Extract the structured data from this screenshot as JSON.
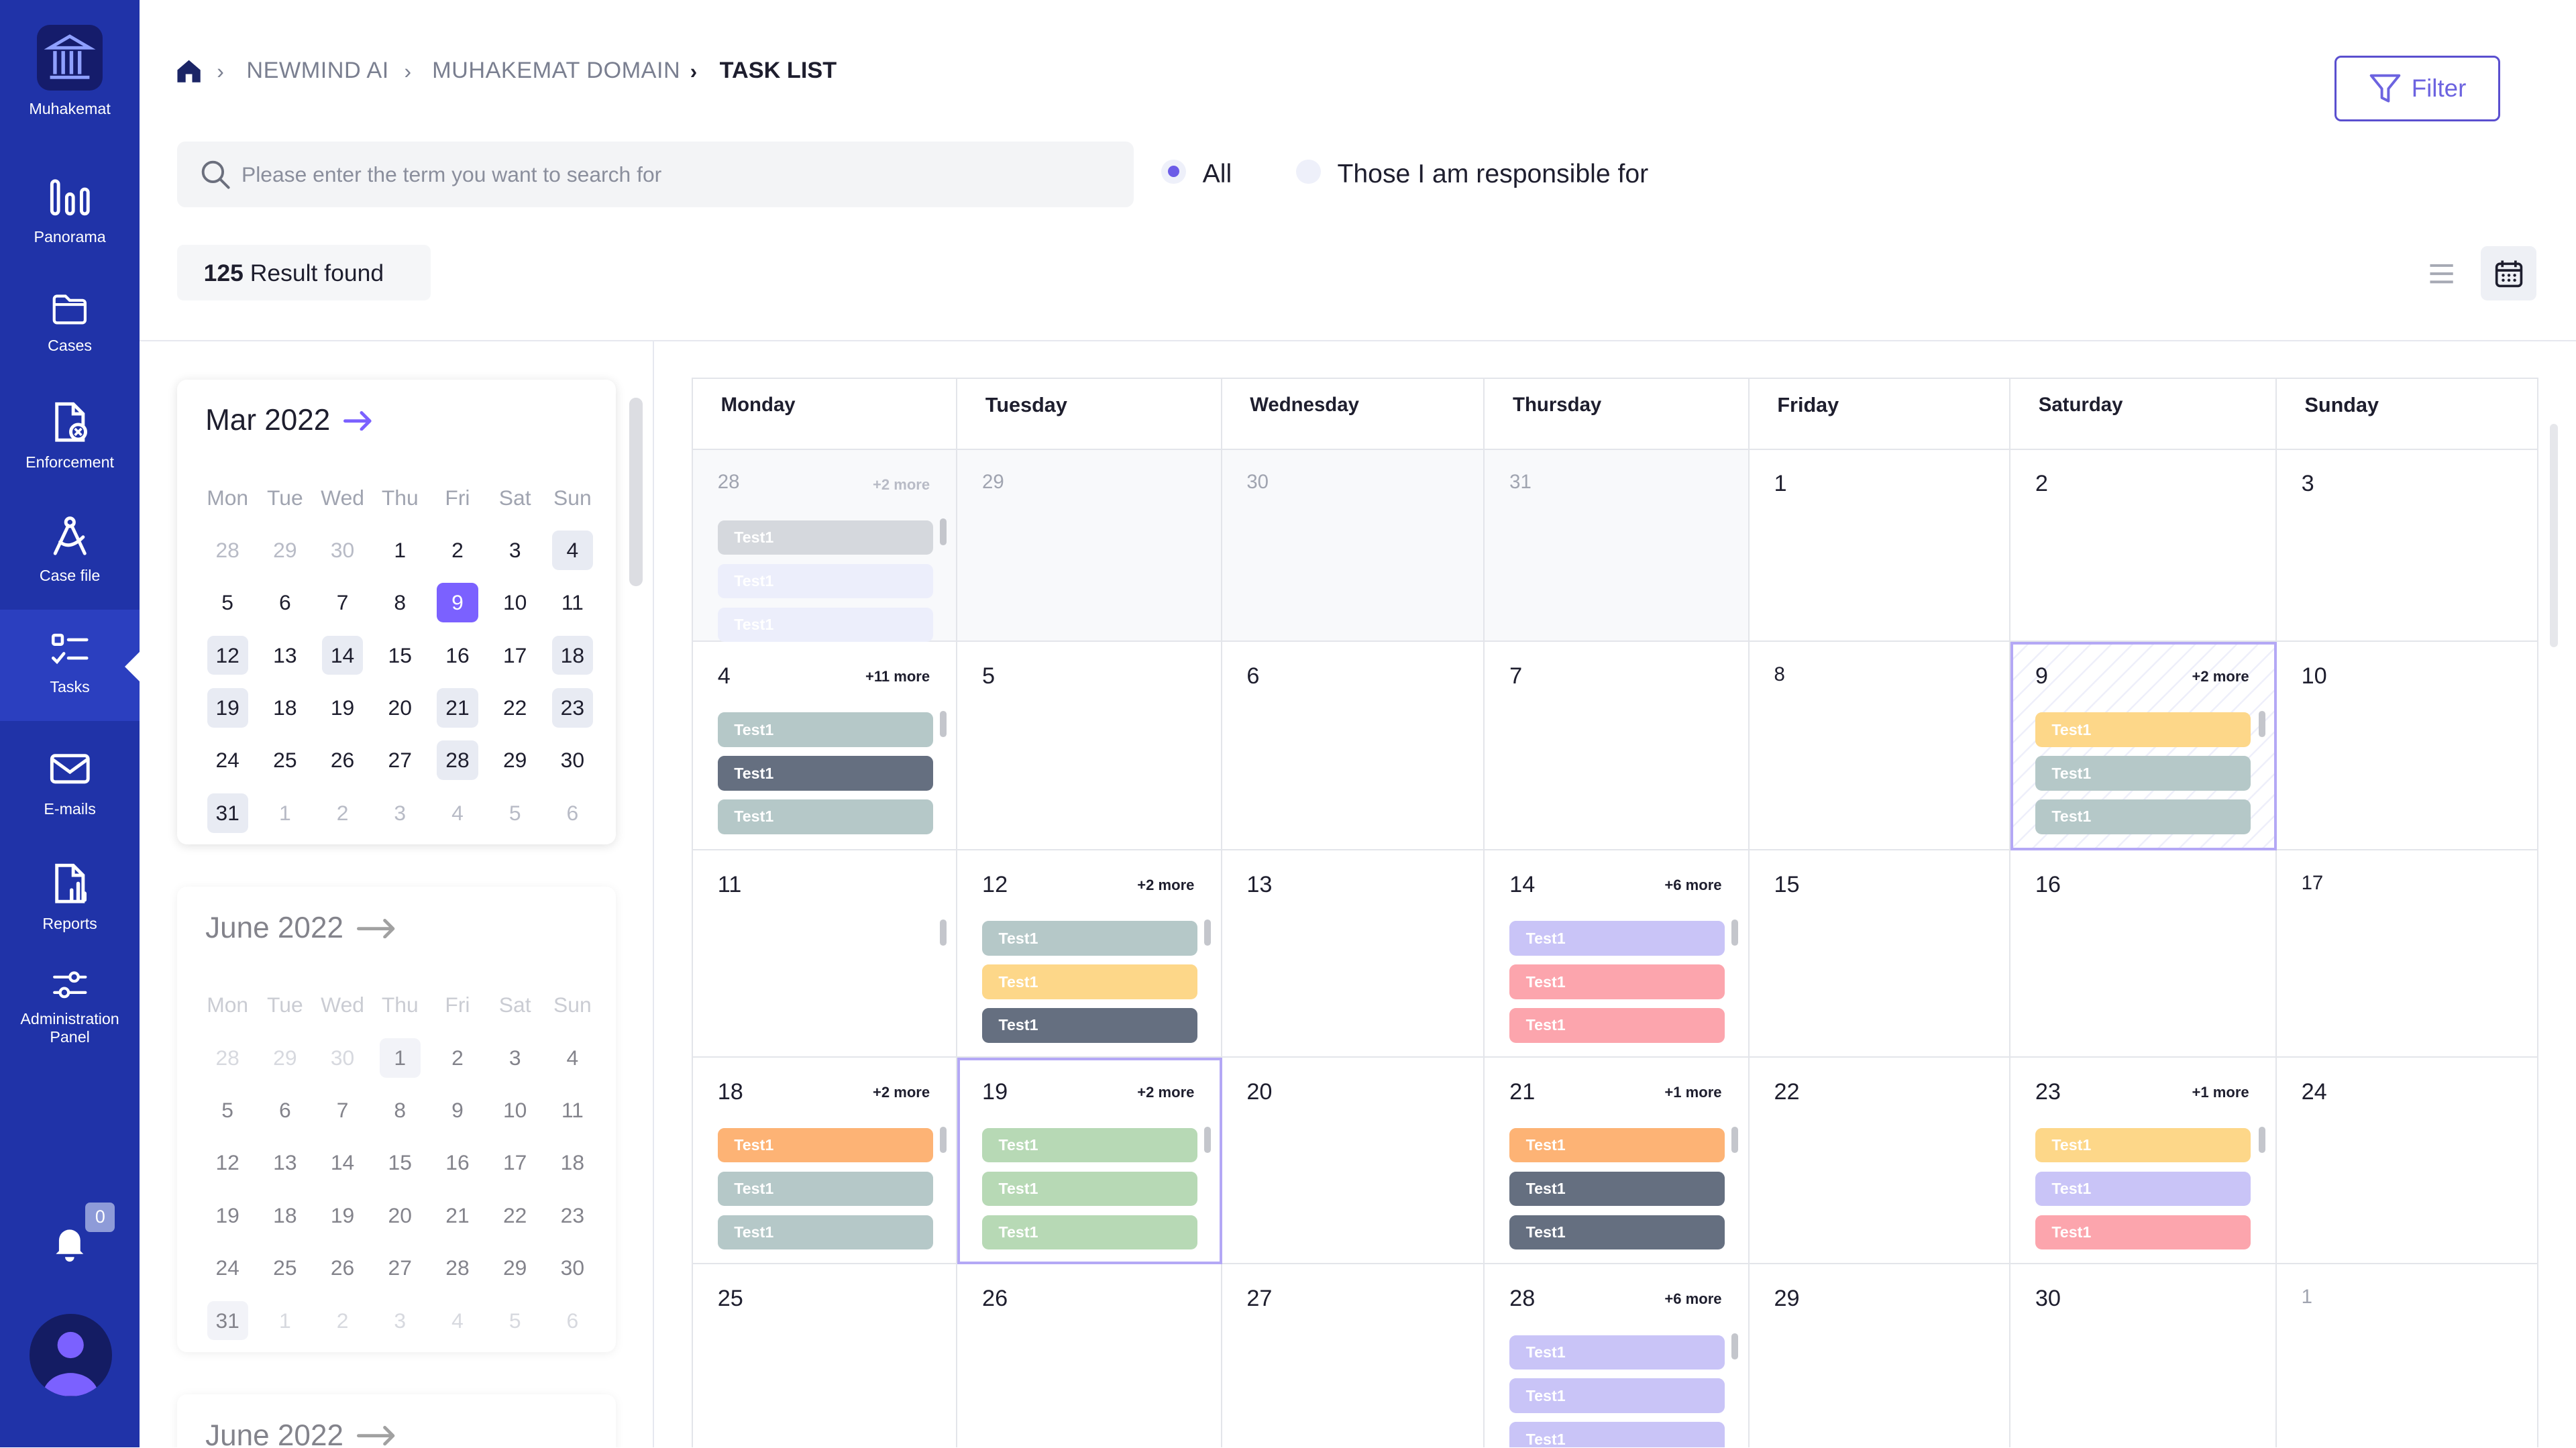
{
  "app": {
    "name": "Muhakemat"
  },
  "sidebar": {
    "items": [
      {
        "label": "Panorama",
        "icon": "bar-chart-icon"
      },
      {
        "label": "Cases",
        "icon": "folder-icon"
      },
      {
        "label": "Enforcement",
        "icon": "document-gear-icon"
      },
      {
        "label": "Case file",
        "icon": "compass-icon"
      },
      {
        "label": "Tasks",
        "icon": "checklist-icon"
      },
      {
        "label": "E-mails",
        "icon": "envelope-icon"
      },
      {
        "label": "Reports",
        "icon": "report-icon"
      },
      {
        "label": "Administration Panel",
        "icon": "sliders-icon"
      }
    ],
    "notification_count": "0"
  },
  "breadcrumb": {
    "items": [
      "NEWMIND AI",
      "MUHAKEMAT DOMAIN",
      "TASK LIST"
    ]
  },
  "search": {
    "placeholder": "Please enter the term you want to search for"
  },
  "filters": {
    "all": "All",
    "responsible": "Those I am responsible for",
    "selected": "All"
  },
  "filter_button": "Filter",
  "results": {
    "count": "125",
    "label": "Result found"
  },
  "mini_calendars": [
    {
      "title": "Mar 2022",
      "weekdays": [
        "Mon",
        "Tue",
        "Wed",
        "Thu",
        "Fri",
        "Sat",
        "Sun"
      ],
      "rows": [
        [
          "28",
          "29",
          "30",
          "1",
          "2",
          "3",
          "4"
        ],
        [
          "5",
          "6",
          "7",
          "8",
          "9",
          "10",
          "11"
        ],
        [
          "12",
          "13",
          "14",
          "15",
          "16",
          "17",
          "18"
        ],
        [
          "19",
          "18",
          "19",
          "20",
          "21",
          "22",
          "23"
        ],
        [
          "24",
          "25",
          "26",
          "27",
          "28",
          "29",
          "30"
        ],
        [
          "31",
          "1",
          "2",
          "3",
          "4",
          "5",
          "6"
        ]
      ],
      "highlighted": [
        "0-6",
        "2-0",
        "2-2",
        "2-6",
        "3-0",
        "3-4",
        "3-6",
        "4-4",
        "5-0"
      ],
      "selected": "1-4",
      "dim": [
        "0-0",
        "0-1",
        "0-2",
        "5-1",
        "5-2",
        "5-3",
        "5-4",
        "5-5",
        "5-6"
      ]
    },
    {
      "title": "June 2022",
      "weekdays": [
        "Mon",
        "Tue",
        "Wed",
        "Thu",
        "Fri",
        "Sat",
        "Sun"
      ],
      "rows": [
        [
          "28",
          "29",
          "30",
          "1",
          "2",
          "3",
          "4"
        ],
        [
          "5",
          "6",
          "7",
          "8",
          "9",
          "10",
          "11"
        ],
        [
          "12",
          "13",
          "14",
          "15",
          "16",
          "17",
          "18"
        ],
        [
          "19",
          "18",
          "19",
          "20",
          "21",
          "22",
          "23"
        ],
        [
          "24",
          "25",
          "26",
          "27",
          "28",
          "29",
          "30"
        ],
        [
          "31",
          "1",
          "2",
          "3",
          "4",
          "5",
          "6"
        ]
      ],
      "highlighted": [
        "0-3",
        "5-0"
      ],
      "selected": "",
      "dim": [
        "0-0",
        "0-1",
        "0-2",
        "5-1",
        "5-2",
        "5-3",
        "5-4",
        "5-5",
        "5-6"
      ]
    },
    {
      "title": "June 2022"
    }
  ],
  "calendar": {
    "weekdays": [
      "Monday",
      "Tuesday",
      "Wednesday",
      "Thursday",
      "Friday",
      "Saturday",
      "Sunday"
    ],
    "weeks": [
      [
        {
          "day": "28",
          "past": true,
          "more": "+2 more",
          "tasks": [
            {
              "label": "Test1",
              "color": "#d5d8dd"
            },
            {
              "label": "Test1",
              "color": "#eceefb"
            },
            {
              "label": "Test1",
              "color": "#eceefb"
            }
          ]
        },
        {
          "day": "29",
          "past": true
        },
        {
          "day": "30",
          "past": true
        },
        {
          "day": "31",
          "past": true
        },
        {
          "day": "1"
        },
        {
          "day": "2"
        },
        {
          "day": "3"
        }
      ],
      [
        {
          "day": "4",
          "more": "+11 more",
          "tasks": [
            {
              "label": "Test1",
              "color": "#b5c8c8"
            },
            {
              "label": "Test1",
              "color": "#656f80"
            },
            {
              "label": "Test1",
              "color": "#b5c8c8"
            }
          ]
        },
        {
          "day": "5"
        },
        {
          "day": "6"
        },
        {
          "day": "7"
        },
        {
          "day": "8",
          "small": true
        },
        {
          "day": "9",
          "more": "+2 more",
          "selected": true,
          "tasks": [
            {
              "label": "Test1",
              "color": "#fdd789"
            },
            {
              "label": "Test1",
              "color": "#b5c8c8"
            },
            {
              "label": "Test1",
              "color": "#b5c8c8"
            }
          ]
        },
        {
          "day": "10"
        }
      ],
      [
        {
          "day": "11"
        },
        {
          "day": "12",
          "more": "+2 more",
          "tasks": [
            {
              "label": "Test1",
              "color": "#b5c8c8"
            },
            {
              "label": "Test1",
              "color": "#fdd789"
            },
            {
              "label": "Test1",
              "color": "#656f80"
            }
          ]
        },
        {
          "day": "13"
        },
        {
          "day": "14",
          "more": "+6 more",
          "tasks": [
            {
              "label": "Test1",
              "color": "#c9c4f7"
            },
            {
              "label": "Test1",
              "color": "#fca5ad"
            },
            {
              "label": "Test1",
              "color": "#fca5ad"
            }
          ]
        },
        {
          "day": "15"
        },
        {
          "day": "16"
        },
        {
          "day": "17",
          "small": true
        }
      ],
      [
        {
          "day": "18",
          "more": "+2 more",
          "tasks": [
            {
              "label": "Test1",
              "color": "#fdb375"
            },
            {
              "label": "Test1",
              "color": "#b5c8c8"
            },
            {
              "label": "Test1",
              "color": "#b5c8c8"
            }
          ]
        },
        {
          "day": "19",
          "more": "+2 more",
          "outlined": true,
          "tasks": [
            {
              "label": "Test1",
              "color": "#b7d9b5"
            },
            {
              "label": "Test1",
              "color": "#b7d9b5"
            },
            {
              "label": "Test1",
              "color": "#b7d9b5"
            }
          ]
        },
        {
          "day": "20"
        },
        {
          "day": "21",
          "more": "+1 more",
          "tasks": [
            {
              "label": "Test1",
              "color": "#fdb375"
            },
            {
              "label": "Test1",
              "color": "#656f80"
            },
            {
              "label": "Test1",
              "color": "#656f80"
            }
          ]
        },
        {
          "day": "22"
        },
        {
          "day": "23",
          "more": "+1 more",
          "tasks": [
            {
              "label": "Test1",
              "color": "#fdd789"
            },
            {
              "label": "Test1",
              "color": "#c9c4f7"
            },
            {
              "label": "Test1",
              "color": "#fca5ad"
            }
          ]
        },
        {
          "day": "24"
        }
      ],
      [
        {
          "day": "25"
        },
        {
          "day": "26"
        },
        {
          "day": "27"
        },
        {
          "day": "28",
          "more": "+6 more",
          "tasks": [
            {
              "label": "Test1",
              "color": "#c9c4f7"
            },
            {
              "label": "Test1",
              "color": "#c9c4f7"
            },
            {
              "label": "Test1",
              "color": "#c9c4f7"
            }
          ]
        },
        {
          "day": "29"
        },
        {
          "day": "30"
        },
        {
          "day": "1",
          "other": true
        }
      ]
    ]
  }
}
